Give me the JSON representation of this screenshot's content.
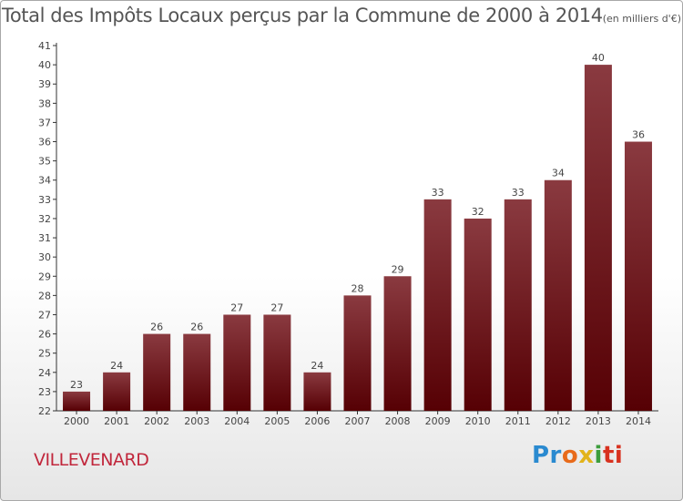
{
  "title": "Total des Impôts Locaux perçus par la Commune de 2000 à 2014",
  "unit": "(en milliers d'€)",
  "commune": "VILLEVENARD",
  "logo": {
    "letters": [
      "Pr",
      "o",
      "x",
      "i",
      "ti"
    ]
  },
  "colors": {
    "bar_top": "#8a3a40",
    "bar_bottom": "#560004",
    "title": "#555555",
    "commune": "#c1273c"
  },
  "chart_data": {
    "type": "bar",
    "title": "Total des Impôts Locaux perçus par la Commune de 2000 à 2014",
    "xlabel": "",
    "ylabel": "",
    "categories": [
      "2000",
      "2001",
      "2002",
      "2003",
      "2004",
      "2005",
      "2006",
      "2007",
      "2008",
      "2009",
      "2010",
      "2011",
      "2012",
      "2013",
      "2014"
    ],
    "values": [
      23,
      24,
      26,
      26,
      27,
      27,
      24,
      28,
      29,
      33,
      32,
      33,
      34,
      40,
      36
    ],
    "ylim": [
      22,
      41
    ],
    "yticks": [
      22,
      23,
      24,
      25,
      26,
      27,
      28,
      29,
      30,
      31,
      32,
      33,
      34,
      35,
      36,
      37,
      38,
      39,
      40,
      41
    ],
    "grid": false,
    "legend": "none"
  }
}
